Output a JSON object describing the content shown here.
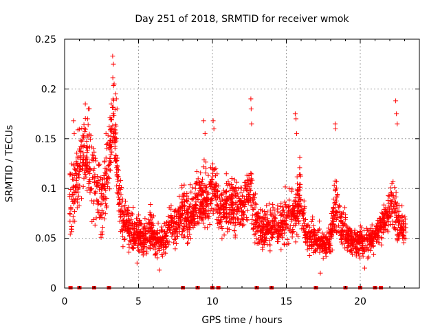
{
  "chart_data": {
    "type": "scatter",
    "title": "Day 251 of 2018, SRMTID for receiver wmok",
    "xlabel": "GPS time / hours",
    "ylabel": "SRMTID / TECUs",
    "xlim": [
      0,
      24
    ],
    "ylim": [
      0,
      0.25
    ],
    "x_ticks": [
      0,
      5,
      10,
      15,
      20
    ],
    "x_tick_labels": [
      "0",
      "5",
      "10",
      "15",
      "20"
    ],
    "y_ticks": [
      0,
      0.05,
      0.1,
      0.15,
      0.2,
      0.25
    ],
    "y_tick_labels": [
      "0",
      "0.05",
      "0.1",
      "0.15",
      "0.2",
      "0.25"
    ],
    "grid": true,
    "marker": "plus",
    "series_color": "#ff0000",
    "baseline_marks_x": [
      0.4,
      1.0,
      2.0,
      3.0,
      8.0,
      9.0,
      10.0,
      10.4,
      13.0,
      14.0,
      17.0,
      19.0,
      20.0,
      21.0,
      21.4
    ],
    "series": [
      {
        "name": "SRMTID",
        "envelope": [
          [
            0.5,
            0.095,
            0.04
          ],
          [
            0.9,
            0.11,
            0.04
          ],
          [
            1.3,
            0.14,
            0.045
          ],
          [
            1.7,
            0.12,
            0.04
          ],
          [
            2.2,
            0.1,
            0.035
          ],
          [
            2.6,
            0.09,
            0.035
          ],
          [
            3.0,
            0.12,
            0.04
          ],
          [
            3.3,
            0.175,
            0.04
          ],
          [
            3.7,
            0.085,
            0.025
          ],
          [
            4.2,
            0.06,
            0.02
          ],
          [
            4.8,
            0.055,
            0.02
          ],
          [
            5.3,
            0.05,
            0.018
          ],
          [
            5.8,
            0.06,
            0.02
          ],
          [
            6.2,
            0.045,
            0.015
          ],
          [
            6.8,
            0.05,
            0.018
          ],
          [
            7.2,
            0.065,
            0.02
          ],
          [
            7.6,
            0.06,
            0.02
          ],
          [
            8.0,
            0.08,
            0.025
          ],
          [
            8.4,
            0.07,
            0.02
          ],
          [
            8.9,
            0.085,
            0.025
          ],
          [
            9.3,
            0.095,
            0.03
          ],
          [
            9.7,
            0.085,
            0.025
          ],
          [
            10.1,
            0.11,
            0.03
          ],
          [
            10.5,
            0.075,
            0.025
          ],
          [
            11.0,
            0.085,
            0.025
          ],
          [
            11.5,
            0.08,
            0.025
          ],
          [
            12.0,
            0.08,
            0.02
          ],
          [
            12.5,
            0.1,
            0.03
          ],
          [
            13.0,
            0.065,
            0.02
          ],
          [
            13.5,
            0.06,
            0.02
          ],
          [
            14.0,
            0.065,
            0.02
          ],
          [
            14.5,
            0.06,
            0.02
          ],
          [
            15.0,
            0.07,
            0.025
          ],
          [
            15.5,
            0.075,
            0.025
          ],
          [
            15.9,
            0.09,
            0.03
          ],
          [
            16.4,
            0.05,
            0.015
          ],
          [
            16.9,
            0.05,
            0.015
          ],
          [
            17.4,
            0.045,
            0.013
          ],
          [
            17.9,
            0.045,
            0.015
          ],
          [
            18.3,
            0.08,
            0.03
          ],
          [
            18.7,
            0.065,
            0.02
          ],
          [
            19.2,
            0.05,
            0.015
          ],
          [
            19.7,
            0.045,
            0.015
          ],
          [
            20.2,
            0.045,
            0.015
          ],
          [
            20.7,
            0.05,
            0.015
          ],
          [
            21.2,
            0.055,
            0.015
          ],
          [
            21.7,
            0.07,
            0.02
          ],
          [
            22.2,
            0.09,
            0.03
          ],
          [
            22.6,
            0.06,
            0.02
          ],
          [
            23.0,
            0.06,
            0.02
          ]
        ],
        "spikes": [
          [
            0.6,
            0.168
          ],
          [
            0.65,
            0.155
          ],
          [
            1.4,
            0.185
          ],
          [
            1.55,
            0.17
          ],
          [
            1.6,
            0.18
          ],
          [
            2.8,
            0.155
          ],
          [
            2.9,
            0.145
          ],
          [
            3.25,
            0.233
          ],
          [
            3.3,
            0.225
          ],
          [
            3.35,
            0.205
          ],
          [
            3.45,
            0.195
          ],
          [
            3.5,
            0.19
          ],
          [
            3.55,
            0.18
          ],
          [
            9.4,
            0.168
          ],
          [
            9.5,
            0.155
          ],
          [
            10.05,
            0.168
          ],
          [
            10.1,
            0.16
          ],
          [
            12.6,
            0.19
          ],
          [
            12.62,
            0.18
          ],
          [
            12.65,
            0.165
          ],
          [
            15.6,
            0.175
          ],
          [
            15.65,
            0.17
          ],
          [
            15.7,
            0.155
          ],
          [
            18.3,
            0.165
          ],
          [
            18.32,
            0.16
          ],
          [
            22.4,
            0.188
          ],
          [
            22.45,
            0.175
          ],
          [
            22.5,
            0.165
          ],
          [
            4.9,
            0.025
          ],
          [
            6.4,
            0.018
          ],
          [
            17.3,
            0.015
          ],
          [
            20.3,
            0.02
          ]
        ],
        "points_per_hour": 120
      }
    ]
  }
}
